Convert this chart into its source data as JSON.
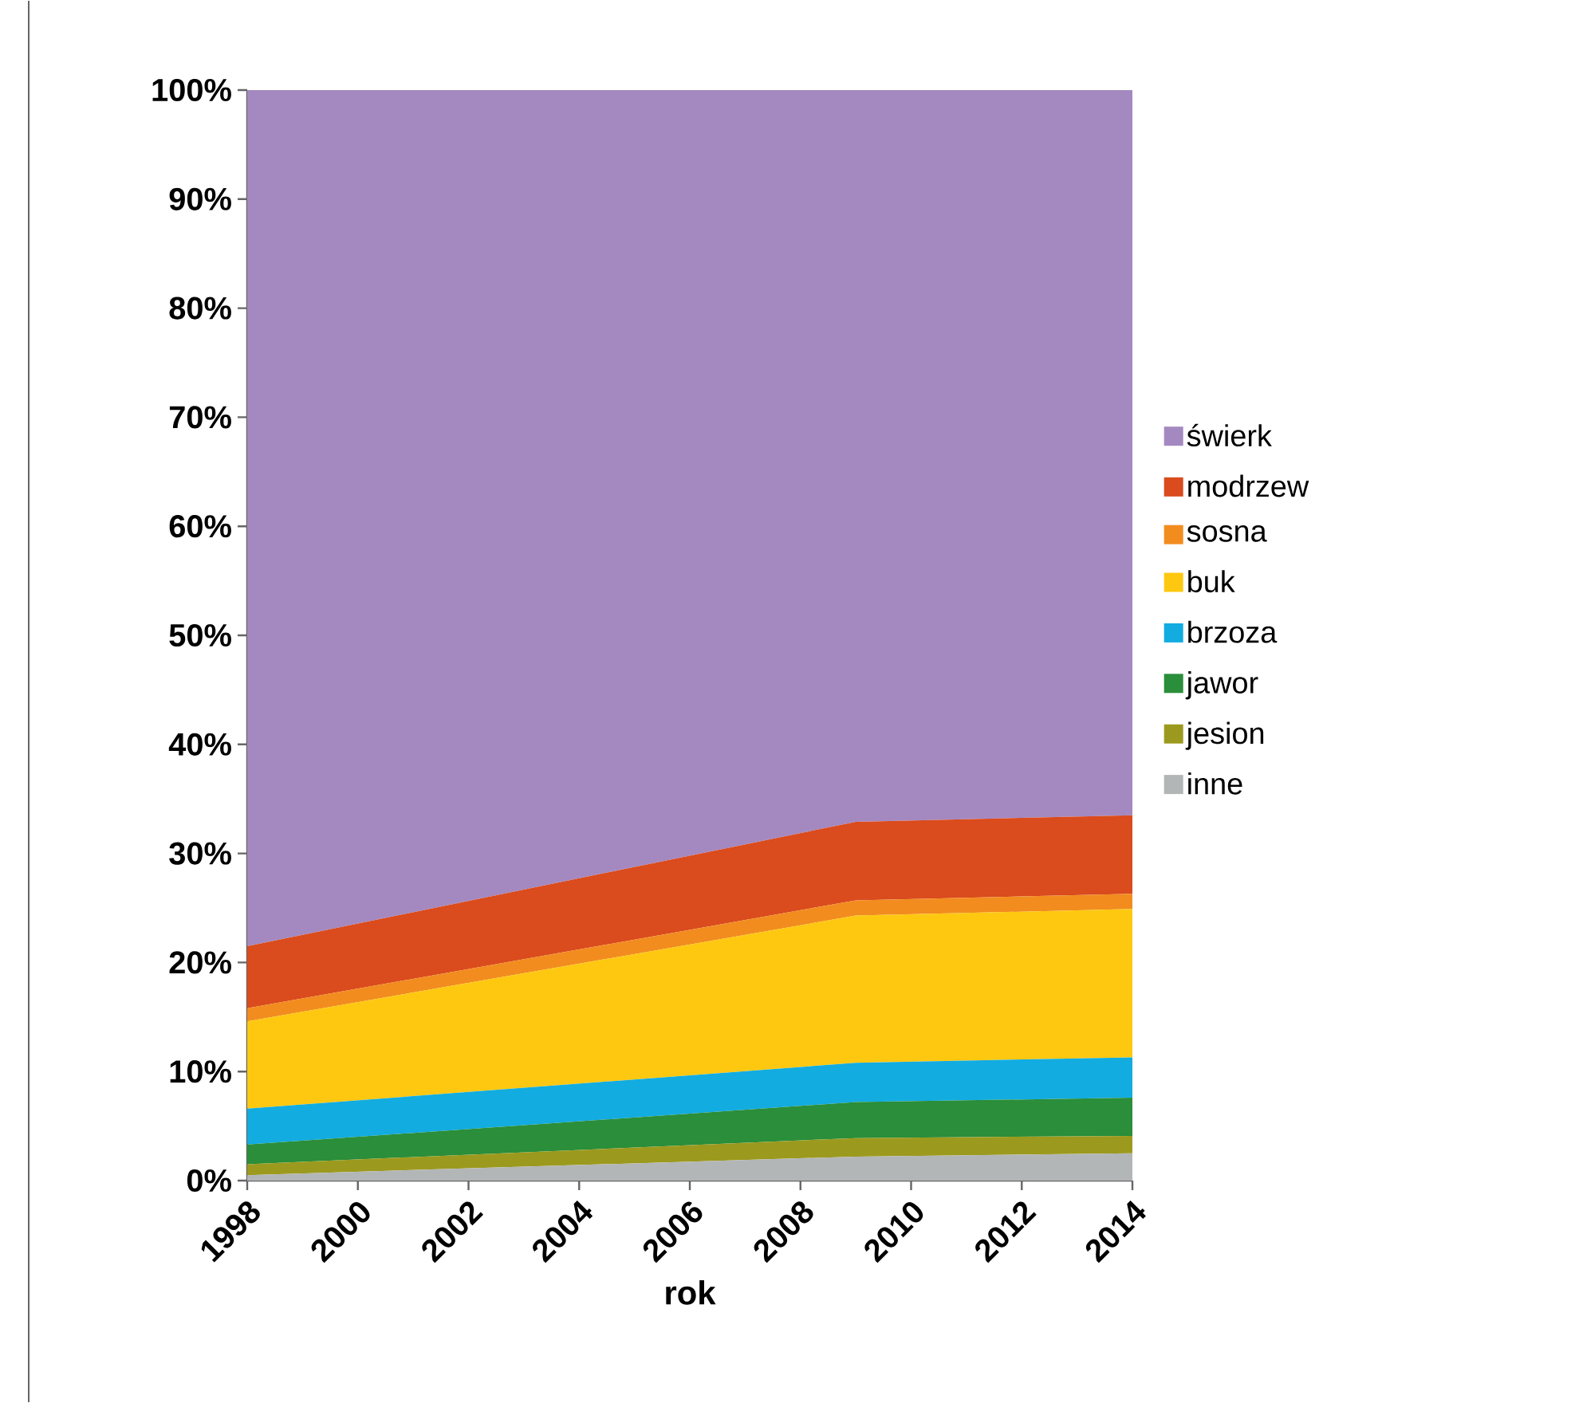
{
  "chart_data": {
    "type": "area",
    "stacked": true,
    "xlabel": "rok",
    "x": [
      1998,
      2009,
      2014
    ],
    "xlim": [
      1998,
      2014
    ],
    "xticks": [
      1998,
      2000,
      2002,
      2004,
      2006,
      2008,
      2010,
      2012,
      2014
    ],
    "ylim": [
      0,
      100
    ],
    "yticks": [
      {
        "value": 0,
        "label": "0%"
      },
      {
        "value": 10,
        "label": "10%"
      },
      {
        "value": 20,
        "label": "20%"
      },
      {
        "value": 30,
        "label": "30%"
      },
      {
        "value": 40,
        "label": "40%"
      },
      {
        "value": 50,
        "label": "50%"
      },
      {
        "value": 60,
        "label": "60%"
      },
      {
        "value": 70,
        "label": "70%"
      },
      {
        "value": 80,
        "label": "80%"
      },
      {
        "value": 90,
        "label": "90%"
      },
      {
        "value": 100,
        "label": "100%"
      }
    ],
    "legend": "right",
    "grid": false,
    "series": [
      {
        "name": "inne",
        "color": "#b3b6b7",
        "values": [
          0.5,
          2.2,
          2.5
        ]
      },
      {
        "name": "jesion",
        "color": "#9c9a1e",
        "values": [
          1.0,
          1.7,
          1.6
        ]
      },
      {
        "name": "jawor",
        "color": "#2a8e3a",
        "values": [
          1.8,
          3.3,
          3.5
        ]
      },
      {
        "name": "brzoza",
        "color": "#12ace0",
        "values": [
          3.3,
          3.6,
          3.7
        ]
      },
      {
        "name": "buk",
        "color": "#fec811",
        "values": [
          8.0,
          13.5,
          13.6
        ]
      },
      {
        "name": "sosna",
        "color": "#f28c1f",
        "values": [
          1.2,
          1.4,
          1.4
        ]
      },
      {
        "name": "modrzew",
        "color": "#da4b1d",
        "values": [
          5.7,
          7.2,
          7.2
        ]
      },
      {
        "name": "świerk",
        "color": "#a489c1",
        "values": [
          78.5,
          67.1,
          66.5
        ]
      }
    ]
  }
}
